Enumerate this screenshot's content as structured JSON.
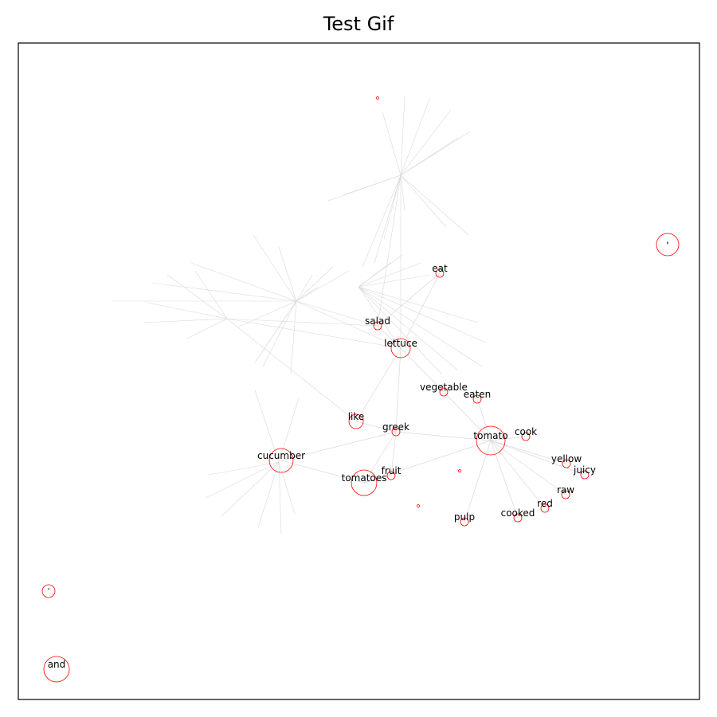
{
  "title": "Test Gif",
  "colors": {
    "node_stroke": "#ff0000",
    "edge": "#d9d9d9",
    "frame": "#000000"
  },
  "nodes": [
    {
      "id": "eat",
      "label": "eat",
      "size": 5
    },
    {
      "id": "salad",
      "label": "salad",
      "size": 5
    },
    {
      "id": "lettuce",
      "label": "lettuce",
      "size": 12
    },
    {
      "id": "vegetable",
      "label": "vegetable",
      "size": 5
    },
    {
      "id": "eaten",
      "label": "eaten",
      "size": 5
    },
    {
      "id": "like",
      "label": "like",
      "size": 9
    },
    {
      "id": "greek",
      "label": "greek",
      "size": 5
    },
    {
      "id": "tomato",
      "label": "tomato",
      "size": 18
    },
    {
      "id": "cook",
      "label": "cook",
      "size": 5
    },
    {
      "id": "yellow",
      "label": "yellow",
      "size": 5
    },
    {
      "id": "juicy",
      "label": "juicy",
      "size": 5
    },
    {
      "id": "raw",
      "label": "raw",
      "size": 5
    },
    {
      "id": "red",
      "label": "red",
      "size": 5
    },
    {
      "id": "cooked",
      "label": "cooked",
      "size": 5
    },
    {
      "id": "pulp",
      "label": "pulp",
      "size": 5
    },
    {
      "id": "fruit",
      "label": "fruit",
      "size": 5
    },
    {
      "id": "tomatoes",
      "label": "tomatoes",
      "size": 16
    },
    {
      "id": "cucumber",
      "label": "cucumber",
      "size": 15
    },
    {
      "id": "comma",
      "label": ",",
      "size": 14
    },
    {
      "id": "period",
      "label": ".",
      "size": 8
    },
    {
      "id": "and",
      "label": "and",
      "size": 16
    },
    {
      "id": "n_top",
      "label": "",
      "size": 1.5
    },
    {
      "id": "n_small1",
      "label": "",
      "size": 1.5
    },
    {
      "id": "n_small2",
      "label": "",
      "size": 1.5
    }
  ],
  "edges": [
    [
      "tomato",
      "cook"
    ],
    [
      "tomato",
      "yellow"
    ],
    [
      "tomato",
      "juicy"
    ],
    [
      "tomato",
      "raw"
    ],
    [
      "tomato",
      "red"
    ],
    [
      "tomato",
      "cooked"
    ],
    [
      "tomato",
      "pulp"
    ],
    [
      "tomato",
      "greek"
    ],
    [
      "tomato",
      "eaten"
    ],
    [
      "tomato",
      "vegetable"
    ],
    [
      "tomato",
      "tomatoes"
    ],
    [
      "lettuce",
      "salad"
    ],
    [
      "lettuce",
      "eat"
    ],
    [
      "lettuce",
      "vegetable"
    ],
    [
      "lettuce",
      "greek"
    ],
    [
      "lettuce",
      "like"
    ],
    [
      "salad",
      "eat"
    ],
    [
      "greek",
      "like"
    ],
    [
      "greek",
      "fruit"
    ],
    [
      "greek",
      "tomatoes"
    ],
    [
      "greek",
      "cucumber"
    ],
    [
      "cucumber",
      "tomatoes"
    ],
    [
      "fruit",
      "tomatoes"
    ]
  ]
}
